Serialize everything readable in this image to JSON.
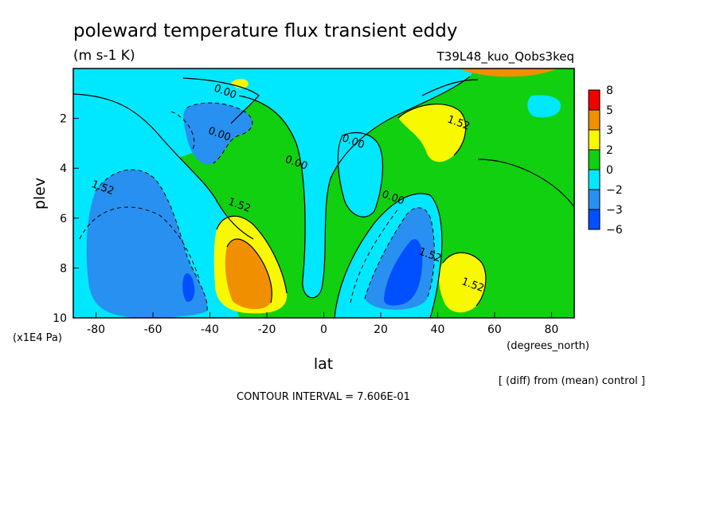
{
  "chart_data": {
    "type": "contour",
    "title": "poleward temperature flux transient eddy",
    "units": "(m s-1 K)",
    "run_name": "T39L48_kuo_Qobs3keq",
    "xlabel": "lat",
    "xunits": "(degrees_north)",
    "ylabel": "plev",
    "yunits": "(x1E4 Pa)",
    "xlim": [
      -88,
      88
    ],
    "ylim": [
      10,
      0
    ],
    "x_ticks": [
      "-80",
      "-60",
      "-40",
      "-20",
      "0",
      "20",
      "40",
      "60",
      "80"
    ],
    "x_tick_values": [
      -80,
      -60,
      -40,
      -20,
      0,
      20,
      40,
      60,
      80
    ],
    "y_ticks": [
      "2",
      "4",
      "6",
      "8",
      "10"
    ],
    "y_tick_values": [
      2,
      4,
      6,
      8,
      10
    ],
    "contour_interval_text": "CONTOUR INTERVAL = 7.606E-01",
    "diff_note": "[ (diff) from (mean) control ]",
    "contour_labels": [
      {
        "text": "0.00",
        "x": -35,
        "y": 1.05
      },
      {
        "text": "0.00",
        "x": -37,
        "y": 2.75
      },
      {
        "text": "0.00",
        "x": 10,
        "y": 3.05
      },
      {
        "text": "0.00",
        "x": -10,
        "y": 3.9
      },
      {
        "text": "0.00",
        "x": 24,
        "y": 5.3
      },
      {
        "text": "1.52",
        "x": 47,
        "y": 2.3
      },
      {
        "text": "1.52",
        "x": -78,
        "y": 4.9
      },
      {
        "text": "1.52",
        "x": -30,
        "y": 5.6
      },
      {
        "text": "1.52",
        "x": 37,
        "y": 7.6
      },
      {
        "text": "1.52",
        "x": 52,
        "y": 8.8
      }
    ],
    "legend": {
      "levels": [
        "8",
        "5",
        "3",
        "2",
        "0",
        "−2",
        "−3",
        "−6"
      ],
      "colors": [
        "#f00000",
        "#f09000",
        "#f8f800",
        "#10d010",
        "#00e8ff",
        "#2890f0",
        "#0050ff"
      ]
    },
    "palette": {
      "c_pos3": "#f09000",
      "c_pos2": "#f8f800",
      "c_zero": "#10d010",
      "c_neg1": "#00e8ff",
      "c_neg2": "#2890f0",
      "c_neg3": "#0050ff"
    }
  }
}
